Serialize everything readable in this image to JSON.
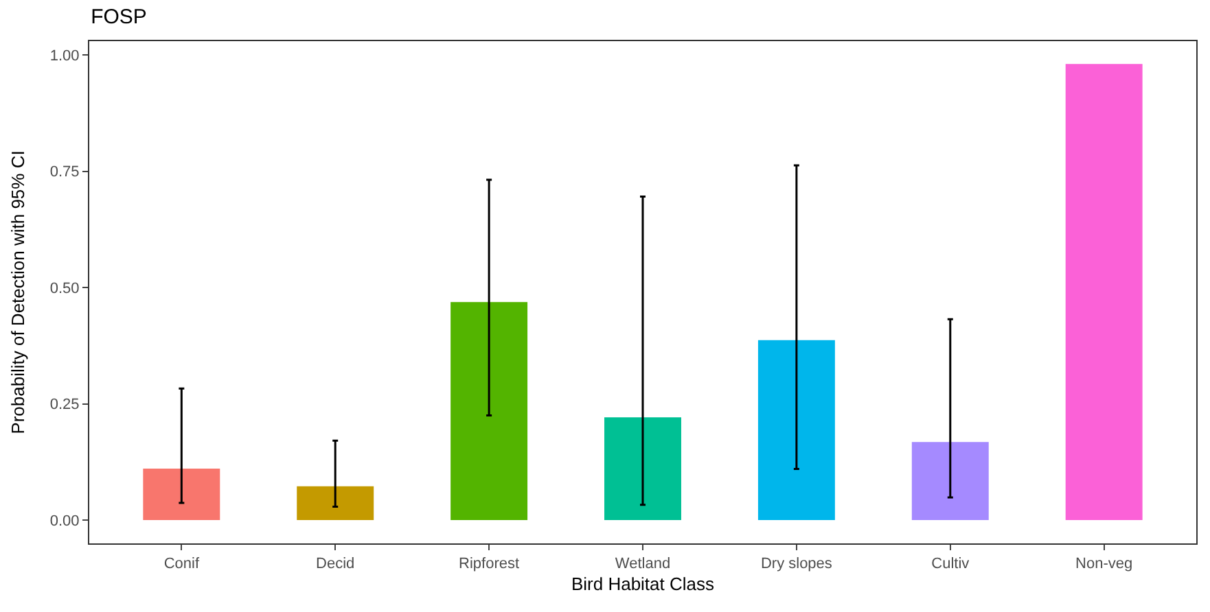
{
  "chart_data": {
    "type": "bar",
    "title": "FOSP",
    "xlabel": "Bird Habitat Class",
    "ylabel": "Probability of Detection with 95% CI",
    "categories": [
      "Conif",
      "Decid",
      "Ripforest",
      "Wetland",
      "Dry slopes",
      "Cultiv",
      "Non-veg"
    ],
    "values": [
      0.111,
      0.073,
      0.469,
      0.221,
      0.387,
      0.168,
      0.981
    ],
    "colors": [
      "#f8766d",
      "#c49a00",
      "#53b400",
      "#00c094",
      "#00b6eb",
      "#a58aff",
      "#fb61d7"
    ],
    "errors": [
      [
        0.037,
        0.283
      ],
      [
        0.029,
        0.171
      ],
      [
        0.225,
        0.732
      ],
      [
        0.033,
        0.696
      ],
      [
        0.11,
        0.763
      ],
      [
        0.049,
        0.432
      ],
      null
    ],
    "ylim": [
      -0.05,
      1.03
    ],
    "yticks": [
      {
        "value": 0,
        "label": "0.00"
      },
      {
        "value": 0.25,
        "label": "0.25"
      },
      {
        "value": 0.5,
        "label": "0.50"
      },
      {
        "value": 0.75,
        "label": "0.75"
      },
      {
        "value": 1,
        "label": "1.00"
      }
    ],
    "data_labels": false
  }
}
